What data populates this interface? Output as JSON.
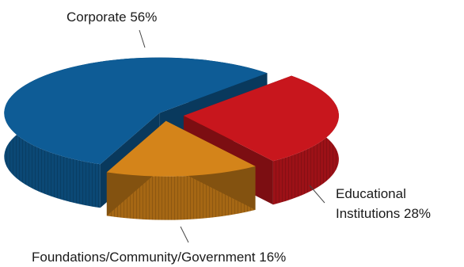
{
  "chart_data": {
    "type": "pie",
    "categories": [
      "Corporate",
      "Educational Institutions",
      "Foundations/Community/Government"
    ],
    "values": [
      56,
      28,
      16
    ],
    "unit": "%",
    "labels": {
      "corporate": "Corporate 56%",
      "educational_line1": "Educational",
      "educational_line2": "Institutions 28%",
      "foundations": "Foundations/Community/Government 16%"
    },
    "colors": {
      "Corporate": "#0e5c96",
      "Educational Institutions": "#c8161d",
      "Foundations/Community/Government": "#d4841a"
    },
    "style": "3d-exploded"
  }
}
